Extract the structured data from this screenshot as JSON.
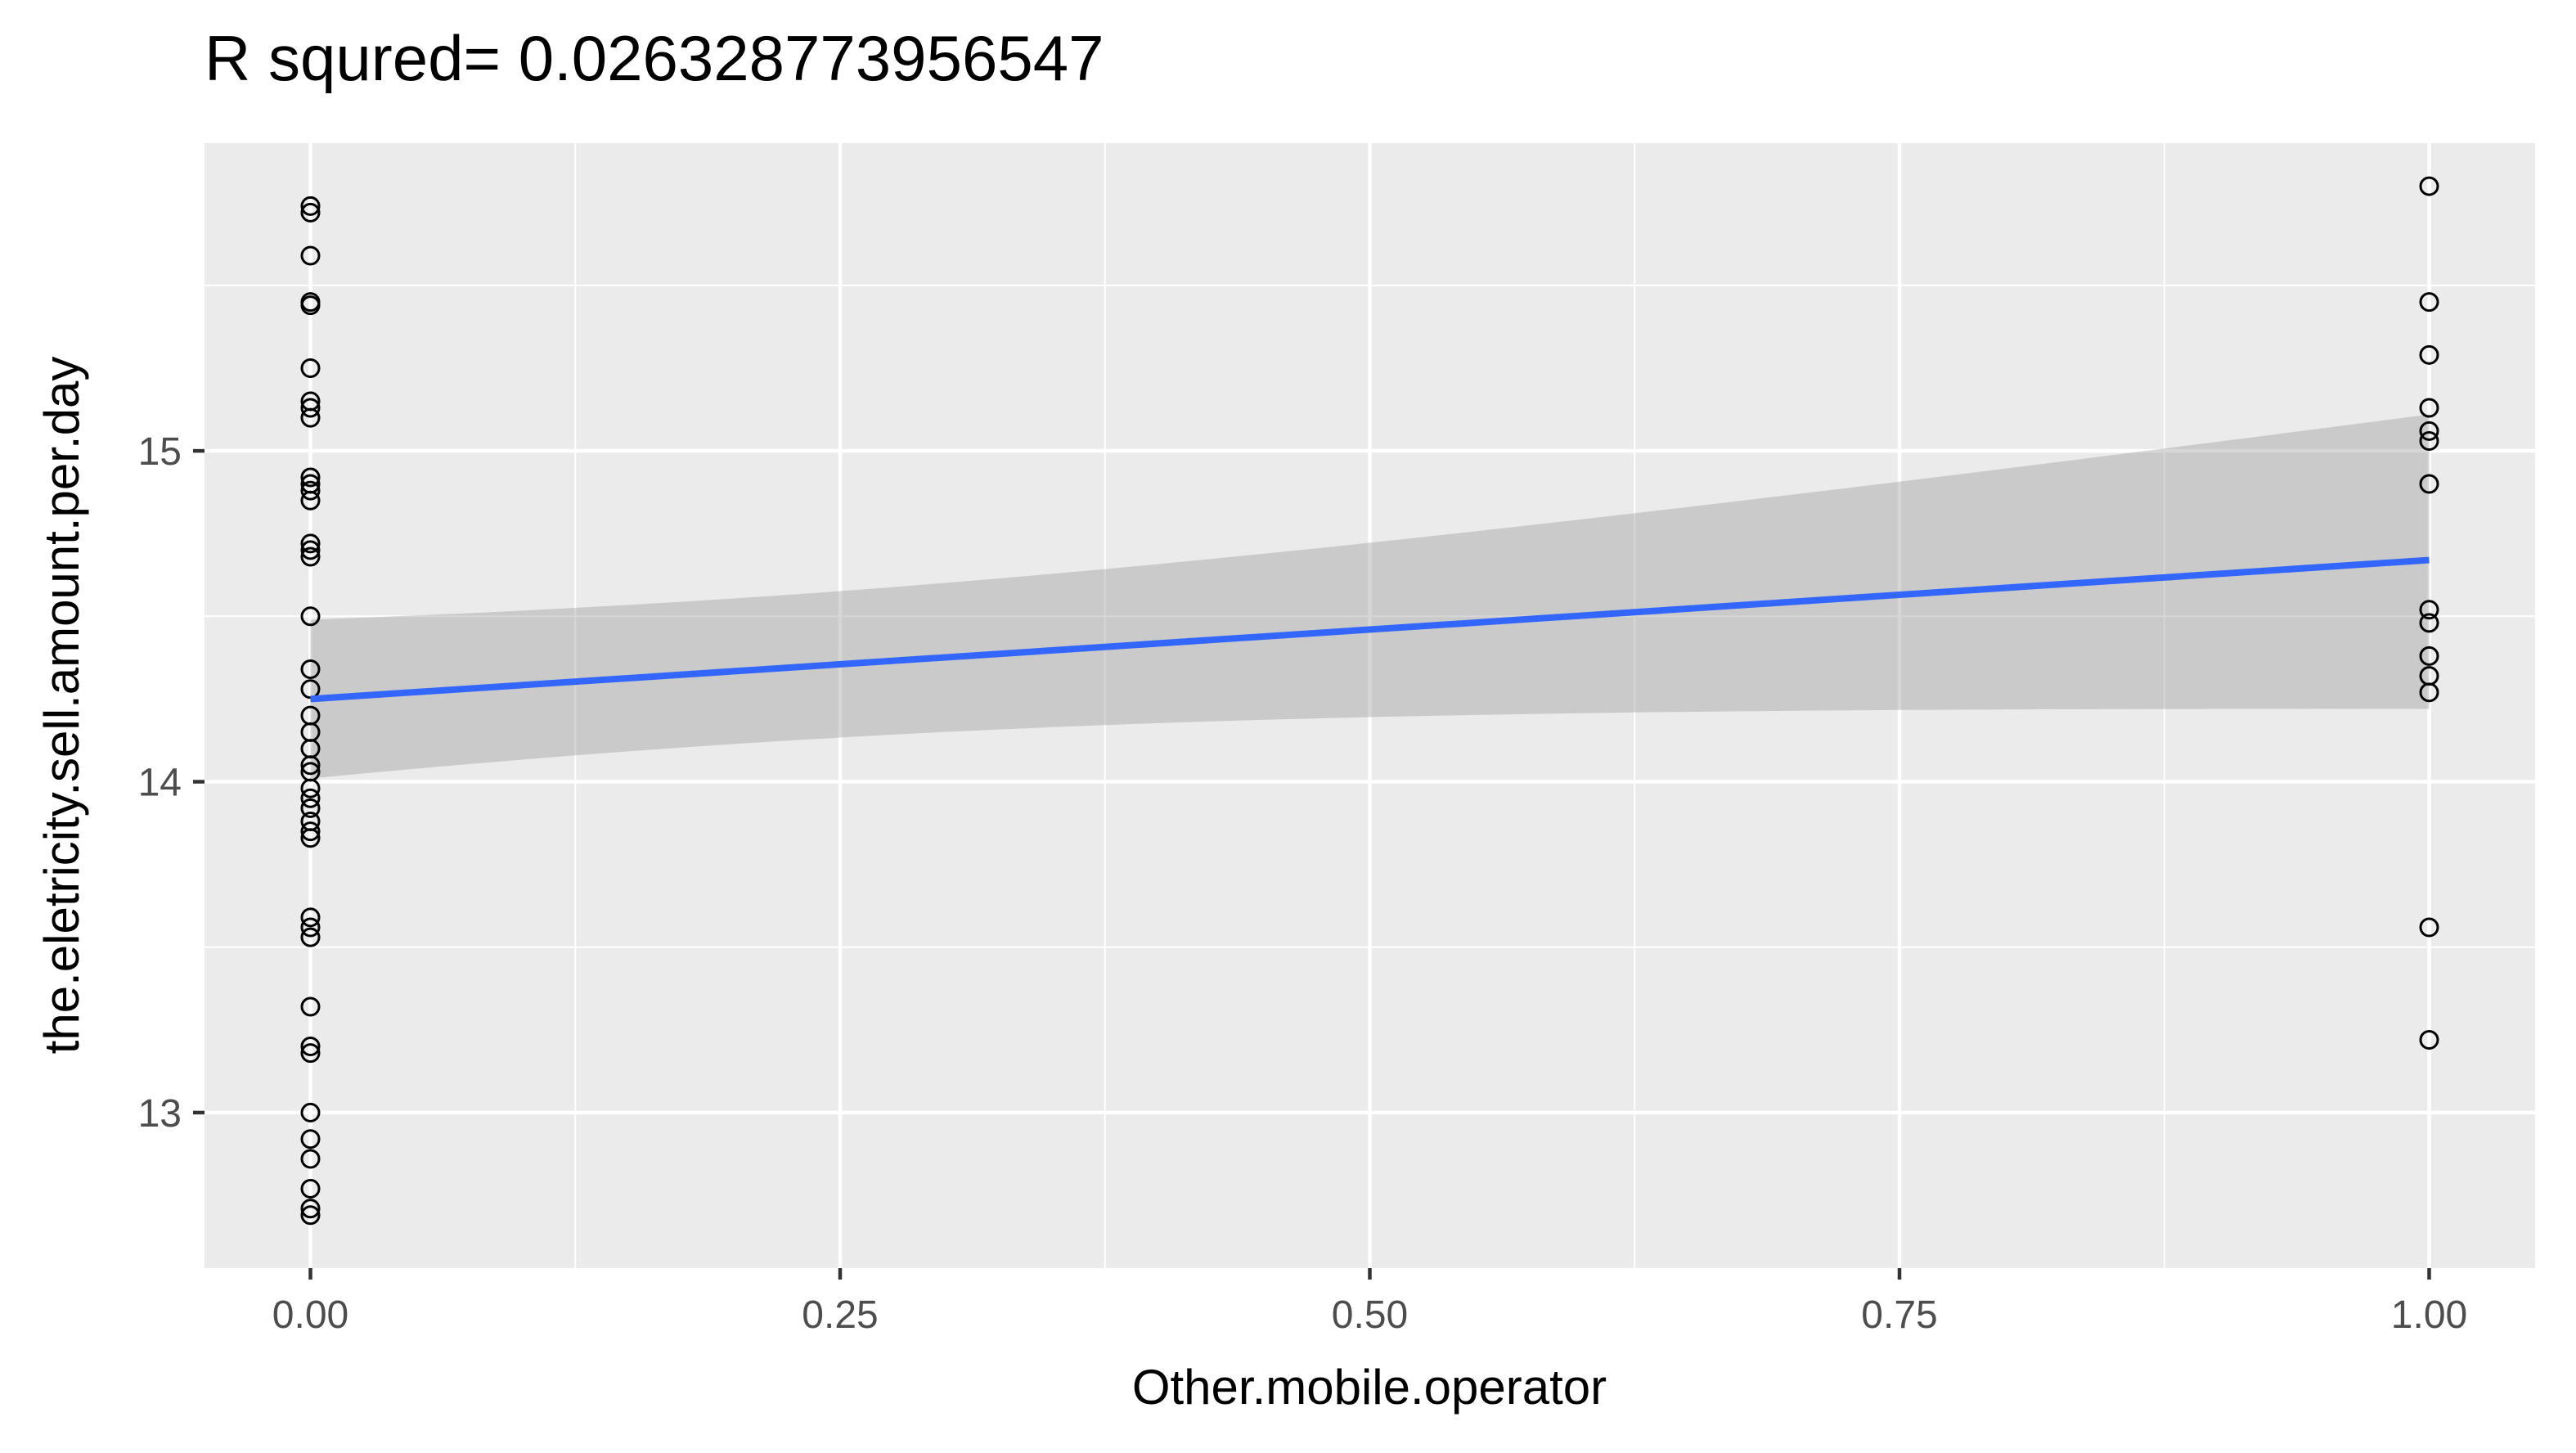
{
  "chart_data": {
    "type": "scatter",
    "title": "R squred= 0.026328773956547",
    "xlabel": "Other.mobile.operator",
    "ylabel": "the.eletricity.sell.amount.per.day",
    "xlim": [
      -0.05,
      1.05
    ],
    "ylim": [
      12.53,
      15.93
    ],
    "x_ticks": [
      0.0,
      0.25,
      0.5,
      0.75,
      1.0
    ],
    "x_tick_labels": [
      "0.00",
      "0.25",
      "0.50",
      "0.75",
      "1.00"
    ],
    "y_ticks": [
      13,
      14,
      15
    ],
    "y_tick_labels": [
      "13",
      "14",
      "15"
    ],
    "grid": true,
    "legend": "none",
    "points": [
      {
        "x": 0,
        "y": 15.74
      },
      {
        "x": 0,
        "y": 15.72
      },
      {
        "x": 0,
        "y": 15.59
      },
      {
        "x": 0,
        "y": 15.45
      },
      {
        "x": 0,
        "y": 15.44
      },
      {
        "x": 0,
        "y": 15.25
      },
      {
        "x": 0,
        "y": 15.15
      },
      {
        "x": 0,
        "y": 15.13
      },
      {
        "x": 0,
        "y": 15.1
      },
      {
        "x": 0,
        "y": 14.92
      },
      {
        "x": 0,
        "y": 14.9
      },
      {
        "x": 0,
        "y": 14.88
      },
      {
        "x": 0,
        "y": 14.85
      },
      {
        "x": 0,
        "y": 14.72
      },
      {
        "x": 0,
        "y": 14.7
      },
      {
        "x": 0,
        "y": 14.68
      },
      {
        "x": 0,
        "y": 14.5
      },
      {
        "x": 0,
        "y": 14.34
      },
      {
        "x": 0,
        "y": 14.28
      },
      {
        "x": 0,
        "y": 14.2
      },
      {
        "x": 0,
        "y": 14.15
      },
      {
        "x": 0,
        "y": 14.1
      },
      {
        "x": 0,
        "y": 14.05
      },
      {
        "x": 0,
        "y": 14.03
      },
      {
        "x": 0,
        "y": 13.98
      },
      {
        "x": 0,
        "y": 13.95
      },
      {
        "x": 0,
        "y": 13.92
      },
      {
        "x": 0,
        "y": 13.88
      },
      {
        "x": 0,
        "y": 13.85
      },
      {
        "x": 0,
        "y": 13.83
      },
      {
        "x": 0,
        "y": 13.59
      },
      {
        "x": 0,
        "y": 13.56
      },
      {
        "x": 0,
        "y": 13.53
      },
      {
        "x": 0,
        "y": 13.32
      },
      {
        "x": 0,
        "y": 13.2
      },
      {
        "x": 0,
        "y": 13.18
      },
      {
        "x": 0,
        "y": 13.0
      },
      {
        "x": 0,
        "y": 12.92
      },
      {
        "x": 0,
        "y": 12.86
      },
      {
        "x": 0,
        "y": 12.77
      },
      {
        "x": 0,
        "y": 12.71
      },
      {
        "x": 0,
        "y": 12.69
      },
      {
        "x": 1,
        "y": 15.8
      },
      {
        "x": 1,
        "y": 15.45
      },
      {
        "x": 1,
        "y": 15.29
      },
      {
        "x": 1,
        "y": 15.13
      },
      {
        "x": 1,
        "y": 15.06
      },
      {
        "x": 1,
        "y": 15.03
      },
      {
        "x": 1,
        "y": 14.9
      },
      {
        "x": 1,
        "y": 14.52
      },
      {
        "x": 1,
        "y": 14.48
      },
      {
        "x": 1,
        "y": 14.38
      },
      {
        "x": 1,
        "y": 14.32
      },
      {
        "x": 1,
        "y": 14.27
      },
      {
        "x": 1,
        "y": 13.56
      },
      {
        "x": 1,
        "y": 13.22
      }
    ],
    "regression": {
      "x": [
        0,
        1
      ],
      "y": [
        14.25,
        14.67
      ],
      "ci_lower": [
        14.01,
        14.22
      ],
      "ci_upper": [
        14.49,
        15.11
      ],
      "line_color": "#3366FF",
      "band_color": "#999999"
    },
    "colors": {
      "panel_background": "#EBEBEB",
      "grid_major": "#FFFFFF",
      "point_stroke": "#000000",
      "axis_text": "#4D4D4D"
    }
  }
}
